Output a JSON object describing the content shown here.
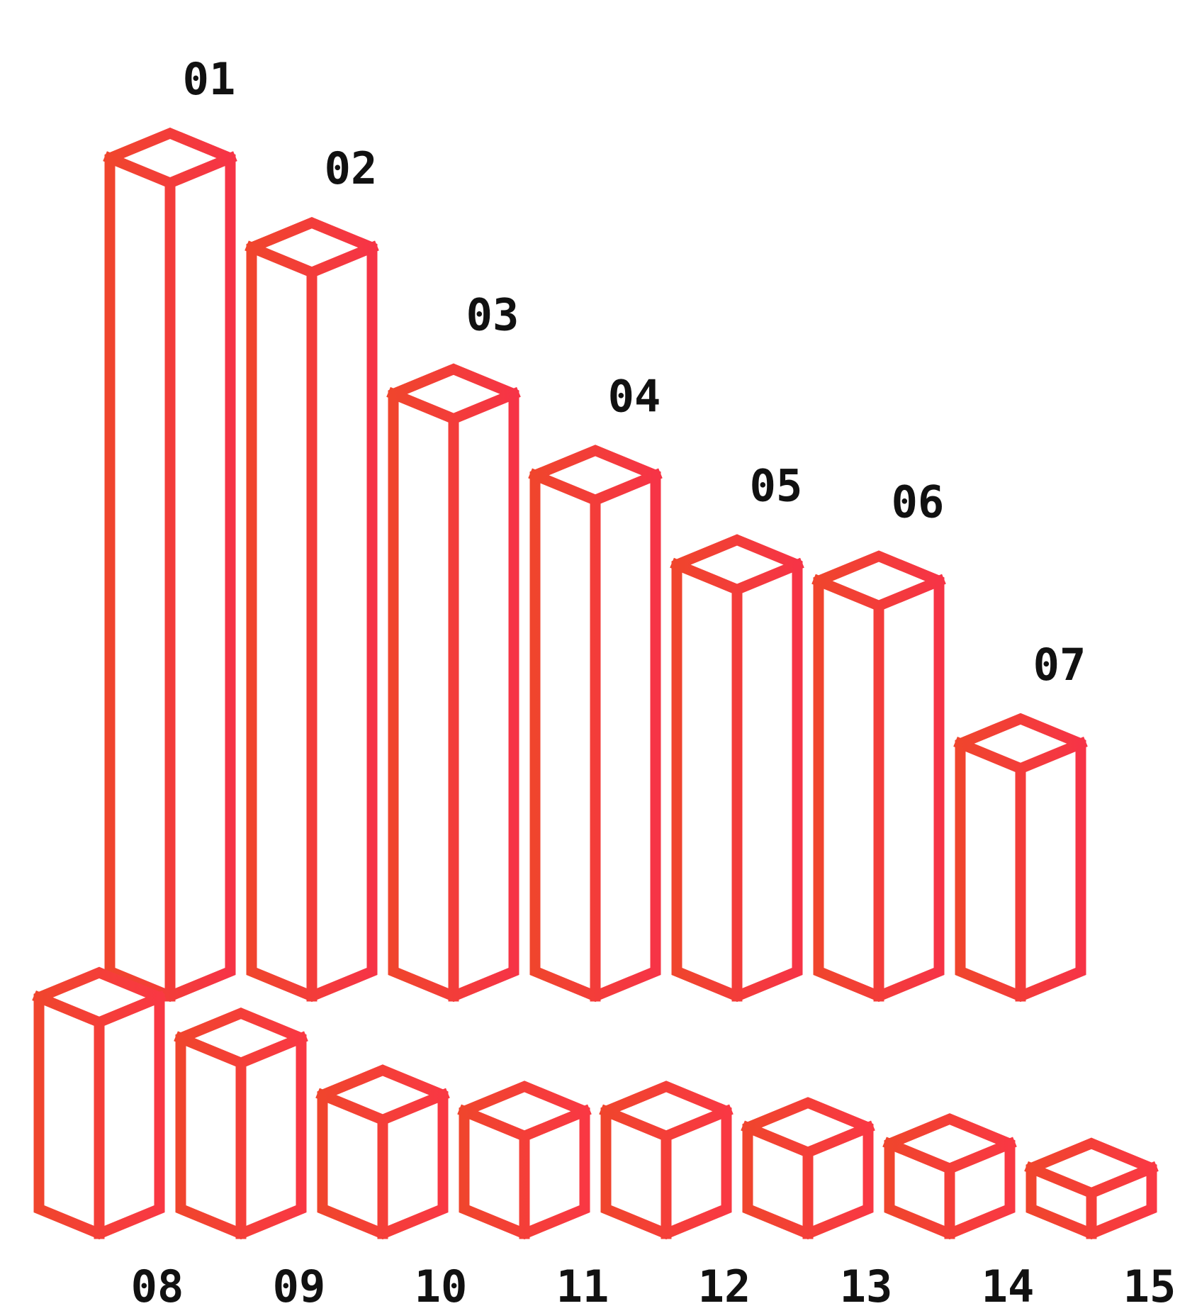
{
  "chart_data": {
    "type": "bar",
    "style": "isometric-3d-outline",
    "colors": {
      "front_row_start": "#F0452D",
      "front_row_end": "#F93843",
      "back_row_start": "#F0452D",
      "back_row_end": "#F63446",
      "label": "#111111"
    },
    "back_row": {
      "categories": [
        "01",
        "02",
        "03",
        "04",
        "05",
        "06",
        "07"
      ],
      "values": [
        100,
        89,
        71,
        61,
        50,
        48,
        28
      ]
    },
    "front_row": {
      "categories": [
        "08",
        "09",
        "10",
        "11",
        "12",
        "13",
        "14",
        "15"
      ],
      "values": [
        26,
        21,
        14,
        12,
        12,
        10,
        8,
        5
      ]
    }
  }
}
